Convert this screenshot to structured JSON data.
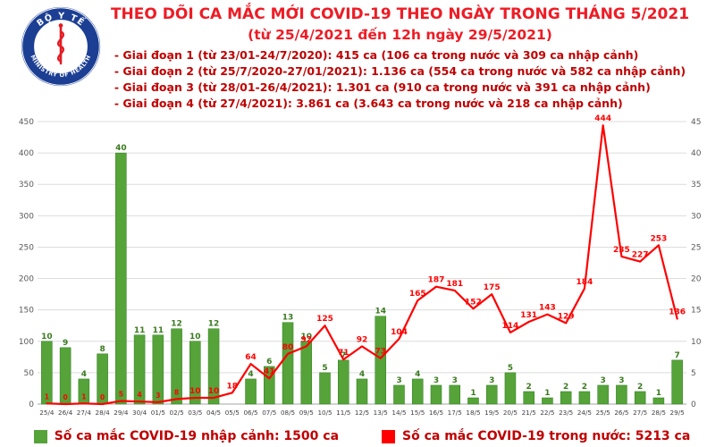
{
  "header": {
    "title": "THEO DÕI CA MẮC MỚI COVID-19 THEO NGÀY TRONG THÁNG 5/2021",
    "subtitle": "(từ 25/4/2021 đến 12h ngày 29/5/2021)",
    "bullets": [
      "- Giai đoạn 1 (từ 23/01-24/7/2020): 415 ca (106 ca trong nước và 309 ca nhập cảnh)",
      "- Giai đoạn 2 (từ 25/7/2020-27/01/2021): 1.136 ca (554 ca trong nước và 582 ca nhập cảnh)",
      "- Giai đoạn 3 (từ 28/01-26/4/2021): 1.301 ca (910 ca trong nước và 391 ca nhập cảnh)",
      "- Giai đoạn 4 (từ 27/4/2021): 3.861 ca (3.643 ca trong nước và 218 ca nhập cảnh)"
    ]
  },
  "logo": {
    "top_text": "BỘ Y TẾ",
    "bottom_text": "MINISTRY OF HEALTH",
    "ring_color": "#1c3f94",
    "emblem_color": "#e31b23"
  },
  "chart_data": {
    "type": "bar+line",
    "categories": [
      "25/4",
      "26/4",
      "27/4",
      "28/4",
      "29/4",
      "30/4",
      "01/5",
      "02/5",
      "03/5",
      "04/5",
      "05/5",
      "06/5",
      "07/5",
      "08/5",
      "09/5",
      "10/5",
      "11/5",
      "12/5",
      "13/5",
      "14/5",
      "15/5",
      "16/5",
      "17/5",
      "18/5",
      "19/5",
      "20/5",
      "21/5",
      "22/5",
      "23/5",
      "24/5",
      "25/5",
      "26/5",
      "27/5",
      "28/5",
      "29/5"
    ],
    "series": [
      {
        "name": "Số ca mắc COVID-19 nhập cảnh",
        "type": "bar",
        "axis": "right",
        "color": "#55a339",
        "label_color": "#3a7a1f",
        "values": [
          10,
          9,
          4,
          8,
          40,
          11,
          11,
          12,
          10,
          12,
          0,
          4,
          6,
          13,
          10,
          5,
          7,
          4,
          14,
          3,
          4,
          3,
          3,
          1,
          3,
          5,
          2,
          1,
          2,
          2,
          3,
          3,
          2,
          1,
          7
        ]
      },
      {
        "name": "Số ca mắc COVID-19 trong nước",
        "type": "line",
        "axis": "left",
        "color": "#ff0000",
        "label_color": "#ff0000",
        "values": [
          1,
          0,
          1,
          0,
          5,
          4,
          3,
          8,
          10,
          10,
          18,
          64,
          41,
          80,
          92,
          125,
          71,
          92,
          73,
          104,
          165,
          187,
          181,
          152,
          175,
          114,
          131,
          143,
          129,
          184,
          444,
          235,
          227,
          253,
          136
        ]
      }
    ],
    "left_axis": {
      "min": 0,
      "max": 450,
      "step": 50
    },
    "right_axis": {
      "min": 0,
      "max": 45,
      "step": 5
    },
    "grid": true,
    "legend_position": "bottom"
  },
  "legend": [
    {
      "label": "Số ca mắc COVID-19 nhập cảnh: 1500 ca",
      "color": "#55a339"
    },
    {
      "label": "Số ca mắc COVID-19 trong nước: 5213 ca",
      "color": "#ff0000"
    }
  ]
}
